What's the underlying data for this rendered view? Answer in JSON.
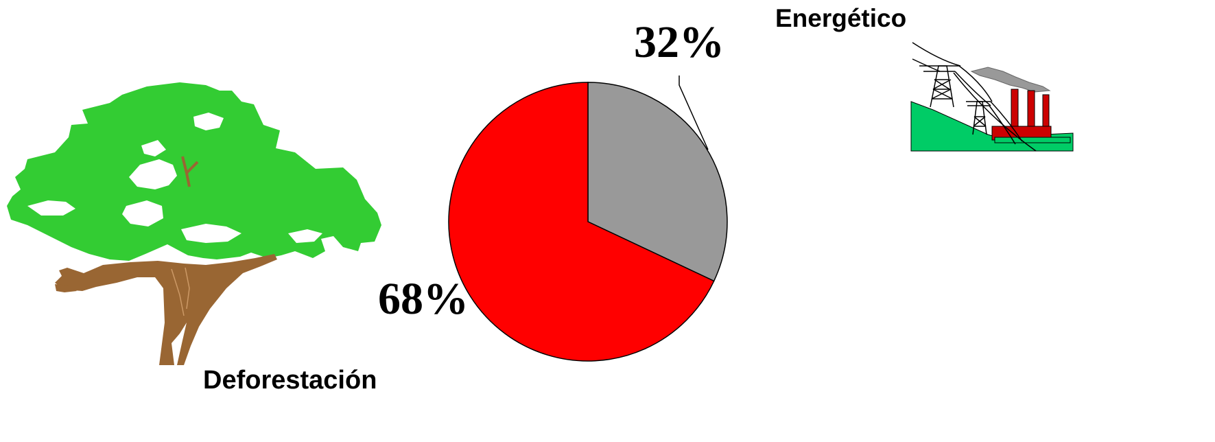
{
  "chart_data": {
    "type": "pie",
    "categories": [
      "Deforestación",
      "Energético"
    ],
    "values": [
      68,
      32
    ],
    "value_labels": [
      "68%",
      "32%"
    ],
    "colors": [
      "#ff0000",
      "#999999"
    ],
    "title": "",
    "legend": "none"
  },
  "illustrations": {
    "tree_icon": "tree-icon",
    "power_plant_icon": "power-plant-icon"
  }
}
